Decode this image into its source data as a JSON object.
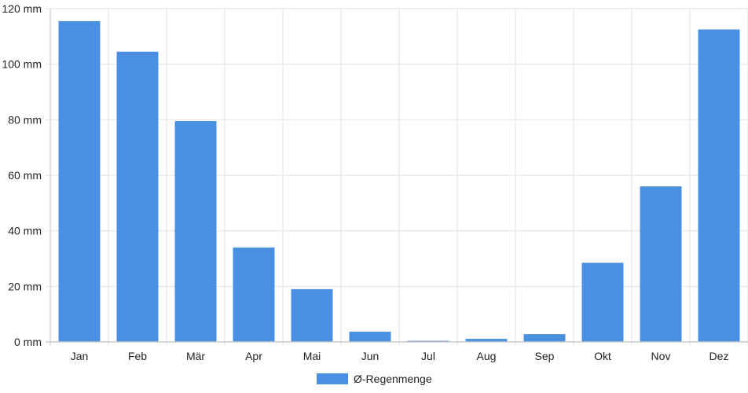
{
  "chart_data": {
    "type": "bar",
    "categories": [
      "Jan",
      "Feb",
      "Mär",
      "Apr",
      "Mai",
      "Jun",
      "Jul",
      "Aug",
      "Sep",
      "Okt",
      "Nov",
      "Dez"
    ],
    "series": [
      {
        "name": "Ø-Regenmenge",
        "values": [
          115.5,
          104.5,
          79.5,
          34,
          19,
          3.7,
          0.4,
          1.1,
          2.8,
          28.5,
          56,
          112.5
        ],
        "color": "#4a90e2"
      }
    ],
    "y_ticks": [
      "0 mm",
      "20 mm",
      "40 mm",
      "60 mm",
      "80 mm",
      "100 mm",
      "120 mm"
    ],
    "ylim": [
      0,
      120
    ],
    "y_tick_step": 20,
    "grid": true,
    "grid_color": "#e2e2e2",
    "legend_position": "bottom"
  }
}
